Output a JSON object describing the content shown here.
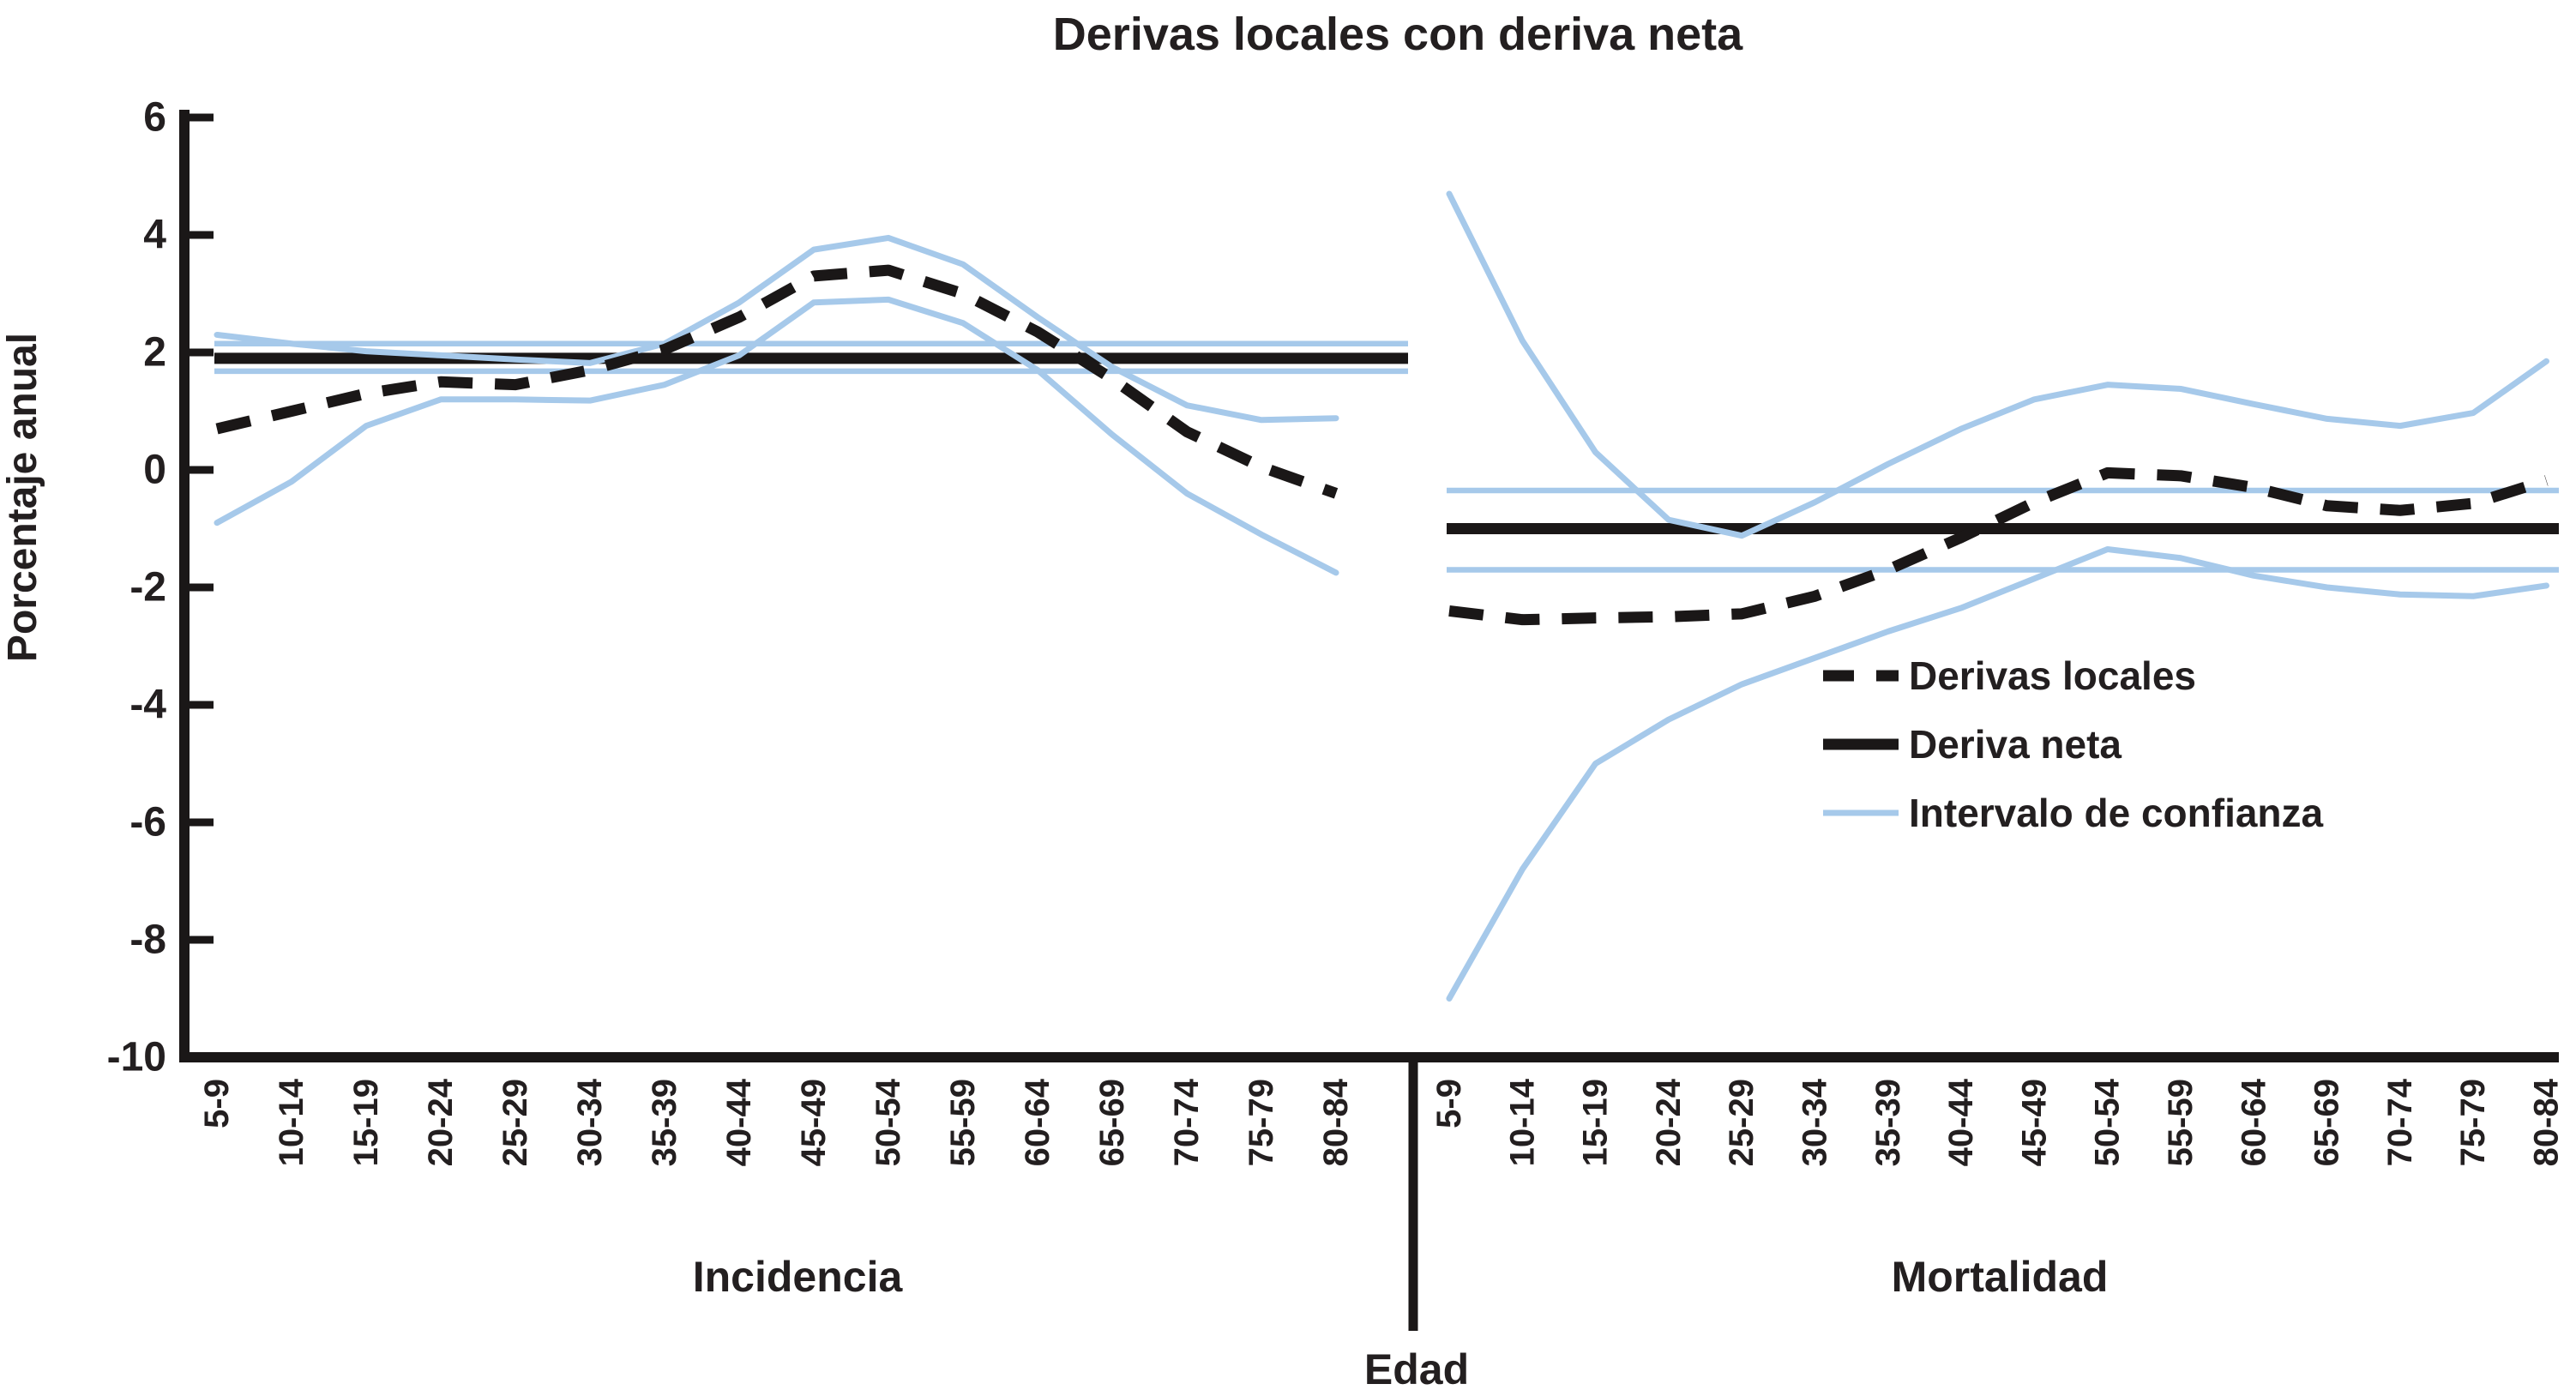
{
  "title": "Derivas locales con deriva neta",
  "y_axis": {
    "label": "Porcentaje anual",
    "ticks": [
      6,
      4,
      2,
      0,
      -2,
      -4,
      -6,
      -8,
      -10
    ],
    "min": -10,
    "max": 6
  },
  "x_axis": {
    "label": "Edad"
  },
  "legend": {
    "local": "Derivas locales",
    "net": "Deriva neta",
    "ci": "Intervalo de confianza"
  },
  "colors": {
    "series_black": "#1a1717",
    "ci_blue": "#a6c9ea",
    "text": "#231f20",
    "background": "#ffffff"
  },
  "chart_data": {
    "type": "line",
    "title": "Derivas locales con deriva neta",
    "xlabel": "Edad",
    "ylabel": "Porcentaje anual",
    "ylim": [
      -10,
      6
    ],
    "grid": false,
    "legend_position": "inside-right-panel",
    "categories": [
      "5-9",
      "10-14",
      "15-19",
      "20-24",
      "25-29",
      "30-34",
      "35-39",
      "40-44",
      "45-49",
      "50-54",
      "55-59",
      "60-64",
      "65-69",
      "70-74",
      "75-79",
      "80-84"
    ],
    "panels": [
      {
        "label": "Incidencia",
        "net_drift": 1.9,
        "net_drift_ci": [
          1.68,
          2.15
        ],
        "local_drifts": [
          0.7,
          1.0,
          1.3,
          1.5,
          1.45,
          1.7,
          2.05,
          2.6,
          3.3,
          3.4,
          3.0,
          2.35,
          1.55,
          0.65,
          0.05,
          -0.4
        ],
        "local_drifts_ci_upper": [
          2.3,
          2.15,
          2.02,
          1.95,
          1.88,
          1.82,
          2.15,
          2.85,
          3.75,
          3.95,
          3.5,
          2.6,
          1.75,
          1.1,
          0.85,
          0.88
        ],
        "local_drifts_ci_lower": [
          -0.9,
          -0.2,
          0.75,
          1.2,
          1.2,
          1.18,
          1.45,
          1.95,
          2.85,
          2.9,
          2.5,
          1.7,
          0.6,
          -0.4,
          -1.1,
          -1.75
        ]
      },
      {
        "label": "Mortalidad",
        "net_drift": -1.0,
        "net_drift_ci": [
          -1.7,
          -0.35
        ],
        "local_drifts": [
          -2.4,
          -2.55,
          -2.52,
          -2.5,
          -2.45,
          -2.15,
          -1.7,
          -1.15,
          -0.55,
          -0.05,
          -0.1,
          -0.3,
          -0.61,
          -0.69,
          -0.57,
          -0.18
        ],
        "local_drifts_ci_upper": [
          4.7,
          2.2,
          0.3,
          -0.85,
          -1.12,
          -0.55,
          0.1,
          0.7,
          1.2,
          1.45,
          1.38,
          1.12,
          0.87,
          0.75,
          0.97,
          1.85
        ],
        "local_drifts_ci_lower": [
          -9.0,
          -6.8,
          -5.0,
          -4.25,
          -3.65,
          -3.2,
          -2.75,
          -2.35,
          -1.85,
          -1.35,
          -1.5,
          -1.8,
          -2.0,
          -2.12,
          -2.15,
          -1.97
        ]
      }
    ]
  }
}
